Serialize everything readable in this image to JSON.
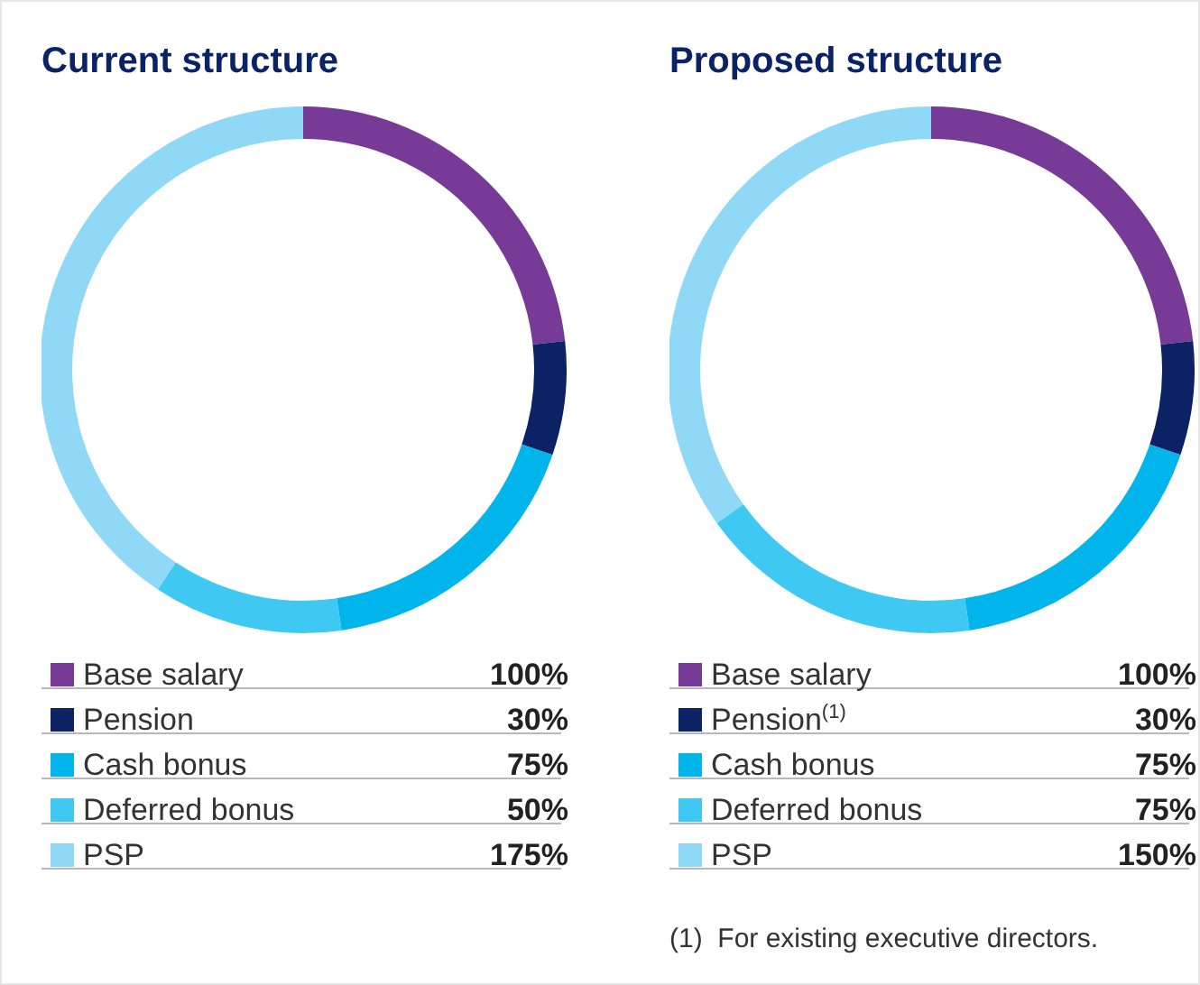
{
  "chart_data": [
    {
      "type": "donut",
      "title": "Current structure",
      "categories": [
        "Base salary",
        "Pension",
        "Cash bonus",
        "Deferred bonus",
        "PSP"
      ],
      "values": [
        100,
        30,
        75,
        50,
        175
      ],
      "colors": [
        "#773a97",
        "#0b2265",
        "#00b4ec",
        "#3ec8f2",
        "#8fd9f7"
      ],
      "value_labels": [
        "100%",
        "30%",
        "75%",
        "50%",
        "175%"
      ],
      "legend": "bottom"
    },
    {
      "type": "donut",
      "title": "Proposed structure",
      "categories": [
        "Base salary",
        "Pension$^{(1)}$",
        "Cash bonus",
        "Deferred bonus",
        "PSP"
      ],
      "values": [
        100,
        30,
        75,
        75,
        150
      ],
      "colors": [
        "#773a97",
        "#0b2265",
        "#00b4ec",
        "#3ec8f2",
        "#8fd9f7"
      ],
      "value_labels": [
        "100%",
        "30%",
        "75%",
        "75%",
        "150%"
      ],
      "legend": "bottom",
      "annotations": [
        "(1)  For existing executive directors."
      ]
    }
  ]
}
